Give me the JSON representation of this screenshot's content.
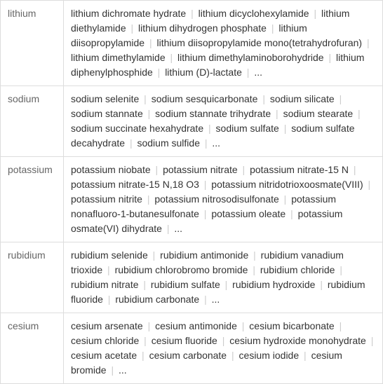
{
  "table": {
    "rows": [
      {
        "label": "lithium",
        "compounds": [
          "lithium dichromate hydrate",
          "lithium dicyclohexylamide",
          "lithium diethylamide",
          "lithium dihydrogen phosphate",
          "lithium diisopropylamide",
          "lithium diisopropylamide mono(tetrahydrofuran)",
          "lithium dimethylamide",
          "lithium dimethylaminoborohydride",
          "lithium diphenylphosphide",
          "lithium (D)-lactate",
          "..."
        ]
      },
      {
        "label": "sodium",
        "compounds": [
          "sodium selenite",
          "sodium sesquicarbonate",
          "sodium silicate",
          "sodium stannate",
          "sodium stannate trihydrate",
          "sodium stearate",
          "sodium succinate hexahydrate",
          "sodium sulfate",
          "sodium sulfate decahydrate",
          "sodium sulfide",
          "..."
        ]
      },
      {
        "label": "potassium",
        "compounds": [
          "potassium niobate",
          "potassium nitrate",
          "potassium nitrate-15 N",
          "potassium nitrate-15 N,18 O3",
          "potassium nitridotrioxoosmate(VIII)",
          "potassium nitrite",
          "potassium nitrosodisulfonate",
          "potassium nonafluoro-1-butanesulfonate",
          "potassium oleate",
          "potassium osmate(VI) dihydrate",
          "..."
        ]
      },
      {
        "label": "rubidium",
        "compounds": [
          "rubidium selenide",
          "rubidium antimonide",
          "rubidium vanadium trioxide",
          "rubidium chlorobromo bromide",
          "rubidium chloride",
          "rubidium nitrate",
          "rubidium sulfate",
          "rubidium hydroxide",
          "rubidium fluoride",
          "rubidium carbonate",
          "..."
        ]
      },
      {
        "label": "cesium",
        "compounds": [
          "cesium arsenate",
          "cesium antimonide",
          "cesium bicarbonate",
          "cesium chloride",
          "cesium fluoride",
          "cesium hydroxide monohydrate",
          "cesium acetate",
          "cesium carbonate",
          "cesium iodide",
          "cesium bromide",
          "..."
        ]
      }
    ]
  },
  "styling": {
    "border_color": "#dddddd",
    "label_text_color": "#666666",
    "content_text_color": "#333333",
    "separator_color": "#cccccc",
    "background_color": "#ffffff",
    "font_size": 14,
    "label_column_width": 90,
    "separator_char": "|"
  }
}
